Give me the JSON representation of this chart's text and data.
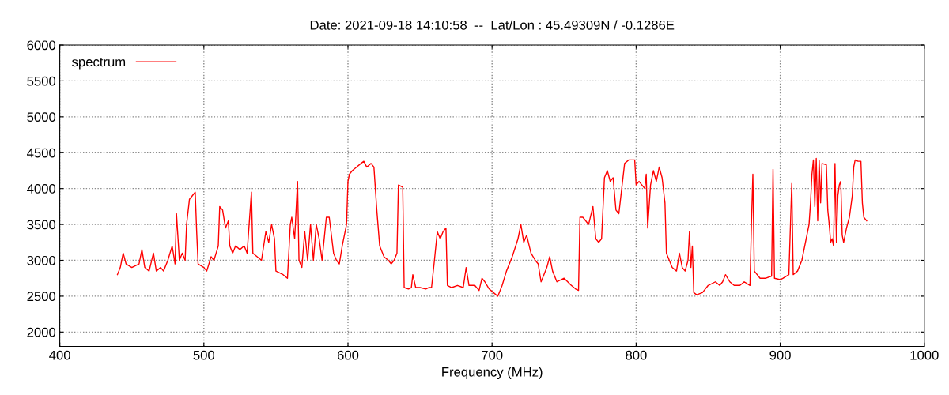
{
  "chart_data": {
    "type": "line",
    "title": "Date: 2021-09-18 14:10:58  --  Lat/Lon : 45.49309N / -0.1286E",
    "xlabel": "Frequency (MHz)",
    "xlim": [
      400,
      1000
    ],
    "xticks": [
      400,
      500,
      600,
      700,
      800,
      900,
      1000
    ],
    "ylim": [
      1800,
      6000
    ],
    "yticks": [
      2000,
      2500,
      3000,
      3500,
      4000,
      4500,
      5000,
      5500,
      6000
    ],
    "grid": true,
    "legend": "top left",
    "line_style": "solid",
    "marker": "none",
    "series": [
      {
        "name": "spectrum",
        "color": "#ff0000",
        "x": [
          440,
          442,
          444,
          446,
          450,
          455,
          457,
          459,
          462,
          465,
          467,
          470,
          472,
          475,
          478,
          480,
          481,
          483,
          485,
          487,
          488,
          490,
          492,
          494,
          495,
          496,
          500,
          502,
          505,
          507,
          510,
          511,
          513,
          515,
          517,
          518,
          520,
          522,
          525,
          528,
          530,
          533,
          534,
          537,
          540,
          543,
          545,
          547,
          549,
          550,
          555,
          558,
          560,
          561,
          563,
          565,
          566,
          568,
          570,
          572,
          574,
          576,
          578,
          580,
          582,
          585,
          587,
          590,
          592,
          594,
          596,
          599,
          600,
          601,
          603,
          606,
          609,
          611,
          613,
          616,
          618,
          620,
          622,
          625,
          628,
          630,
          632,
          634,
          635,
          638,
          639,
          642,
          644,
          645,
          647,
          650,
          654,
          656,
          658,
          660,
          662,
          664,
          666,
          668,
          669,
          672,
          676,
          680,
          682,
          684,
          688,
          691,
          693,
          695,
          698,
          701,
          704,
          707,
          710,
          714,
          718,
          720,
          722,
          724,
          727,
          730,
          732,
          734,
          736,
          738,
          740,
          742,
          745,
          750,
          755,
          758,
          760,
          761,
          763,
          765,
          767,
          770,
          772,
          774,
          776,
          778,
          780,
          782,
          784,
          786,
          788,
          790,
          792,
          795,
          799,
          800,
          802,
          804,
          806,
          807,
          808,
          810,
          812,
          814,
          816,
          818,
          820,
          821,
          822,
          825,
          828,
          830,
          832,
          834,
          836,
          837,
          838,
          839,
          840,
          842,
          846,
          850,
          855,
          858,
          860,
          862,
          865,
          868,
          872,
          875,
          879,
          880,
          881,
          882,
          886,
          890,
          894,
          895,
          896,
          900,
          902,
          906,
          908,
          909,
          912,
          915,
          918,
          920,
          921,
          922,
          923,
          924,
          925,
          926,
          927,
          928,
          929,
          932,
          933,
          934,
          935,
          936,
          937,
          938,
          939,
          940,
          941,
          942,
          943,
          944,
          946,
          948,
          950,
          951,
          952,
          954,
          956,
          957,
          958,
          960
        ],
        "values": [
          2800,
          2900,
          3100,
          2950,
          2900,
          2950,
          3150,
          2900,
          2850,
          3100,
          2850,
          2900,
          2850,
          3000,
          3200,
          2950,
          3650,
          3000,
          3100,
          3000,
          3500,
          3850,
          3900,
          3950,
          3400,
          2950,
          2900,
          2850,
          3050,
          3000,
          3200,
          3750,
          3700,
          3450,
          3550,
          3200,
          3100,
          3200,
          3150,
          3200,
          3100,
          3950,
          3100,
          3050,
          3000,
          3400,
          3250,
          3500,
          3300,
          2850,
          2800,
          2750,
          3500,
          3600,
          3300,
          4100,
          3000,
          2900,
          3400,
          3000,
          3500,
          3000,
          3500,
          3300,
          3000,
          3600,
          3600,
          3100,
          3000,
          2950,
          3200,
          3500,
          4100,
          4200,
          4250,
          4300,
          4350,
          4380,
          4300,
          4350,
          4300,
          3700,
          3200,
          3050,
          3000,
          2950,
          3000,
          3100,
          4050,
          4020,
          2620,
          2600,
          2620,
          2800,
          2620,
          2620,
          2600,
          2620,
          2620,
          3000,
          3400,
          3300,
          3400,
          3450,
          2650,
          2620,
          2650,
          2620,
          2900,
          2650,
          2650,
          2580,
          2750,
          2700,
          2600,
          2550,
          2500,
          2650,
          2850,
          3050,
          3300,
          3500,
          3250,
          3350,
          3100,
          3000,
          2950,
          2700,
          2800,
          2900,
          3050,
          2850,
          2700,
          2750,
          2650,
          2600,
          2580,
          3600,
          3600,
          3550,
          3500,
          3750,
          3300,
          3250,
          3300,
          4150,
          4250,
          4100,
          4150,
          3700,
          3650,
          4000,
          4350,
          4400,
          4400,
          4050,
          4100,
          4050,
          4000,
          4200,
          3450,
          4050,
          4250,
          4100,
          4300,
          4150,
          3800,
          3100,
          3050,
          2900,
          2850,
          3100,
          2900,
          2850,
          3000,
          3400,
          2900,
          3200,
          2550,
          2520,
          2550,
          2650,
          2700,
          2650,
          2700,
          2800,
          2700,
          2650,
          2650,
          2700,
          2650,
          3500,
          4200,
          2850,
          2750,
          2750,
          2780,
          4270,
          2750,
          2730,
          2750,
          2800,
          4070,
          2800,
          2850,
          3000,
          3300,
          3500,
          3800,
          4200,
          4400,
          3750,
          4420,
          3550,
          4400,
          3800,
          4350,
          4330,
          3700,
          3500,
          3250,
          3300,
          3200,
          4350,
          3250,
          3900,
          4050,
          4100,
          3350,
          3250,
          3450,
          3600,
          3900,
          4300,
          4400,
          4380,
          4380,
          3800,
          3600,
          3550
        ]
      }
    ]
  }
}
